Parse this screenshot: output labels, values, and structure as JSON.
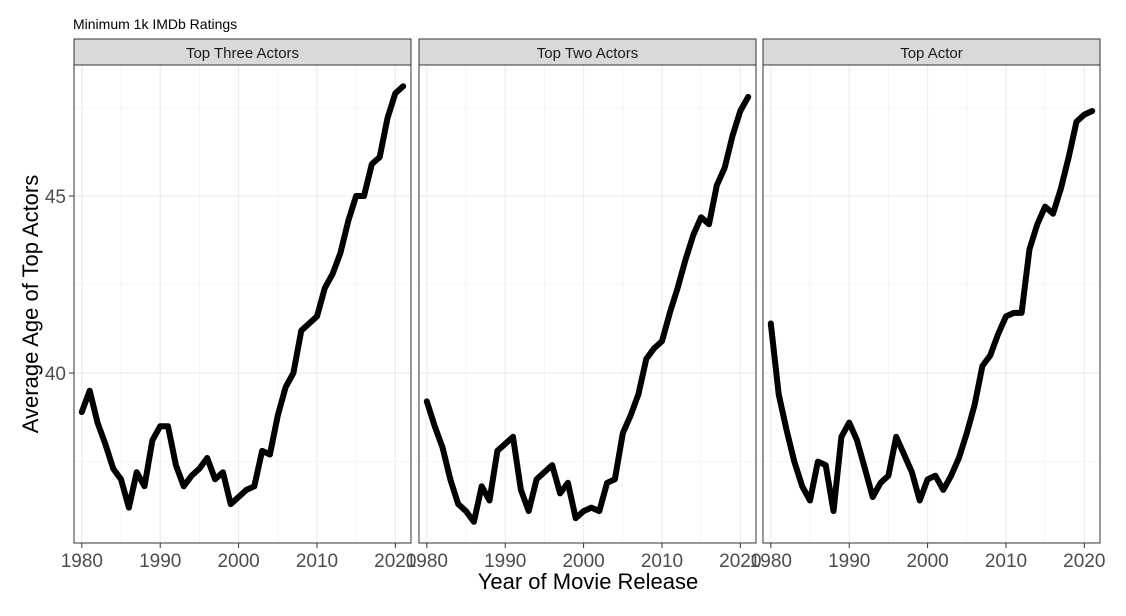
{
  "chart_data": {
    "type": "line",
    "title": "Minimum 1k IMDb Ratings",
    "xlabel": "Year of Movie Release",
    "ylabel": "Average Age of Top Actors",
    "xlim": [
      1979,
      2022
    ],
    "ylim": [
      35.2,
      48.7
    ],
    "x_ticks": [
      1980,
      1990,
      2000,
      2010,
      2020
    ],
    "y_ticks": [
      40,
      45
    ],
    "grid": true,
    "x": [
      1980,
      1981,
      1982,
      1983,
      1984,
      1985,
      1986,
      1987,
      1988,
      1989,
      1990,
      1991,
      1992,
      1993,
      1994,
      1995,
      1996,
      1997,
      1998,
      1999,
      2000,
      2001,
      2002,
      2003,
      2004,
      2005,
      2006,
      2007,
      2008,
      2009,
      2010,
      2011,
      2012,
      2013,
      2014,
      2015,
      2016,
      2017,
      2018,
      2019,
      2020,
      2021
    ],
    "panels": [
      {
        "label": "Top Three Actors",
        "values": [
          38.9,
          39.5,
          38.6,
          38.0,
          37.3,
          37.0,
          36.2,
          37.2,
          36.8,
          38.1,
          38.5,
          38.5,
          37.4,
          36.8,
          37.1,
          37.3,
          37.6,
          37.0,
          37.2,
          36.3,
          36.5,
          36.7,
          36.8,
          37.8,
          37.7,
          38.8,
          39.6,
          40.0,
          41.2,
          41.4,
          41.6,
          42.4,
          42.8,
          43.4,
          44.3,
          45.0,
          45.0,
          45.9,
          46.1,
          47.2,
          47.9,
          48.1
        ]
      },
      {
        "label": "Top Two Actors",
        "values": [
          39.2,
          38.5,
          37.9,
          37.0,
          36.3,
          36.1,
          35.8,
          36.8,
          36.4,
          37.8,
          38.0,
          38.2,
          36.7,
          36.1,
          37.0,
          37.2,
          37.4,
          36.6,
          36.9,
          35.9,
          36.1,
          36.2,
          36.1,
          36.9,
          37.0,
          38.3,
          38.8,
          39.4,
          40.4,
          40.7,
          40.9,
          41.7,
          42.4,
          43.2,
          43.9,
          44.4,
          44.2,
          45.3,
          45.8,
          46.7,
          47.4,
          47.8
        ]
      },
      {
        "label": "Top Actor",
        "values": [
          41.4,
          39.4,
          38.4,
          37.5,
          36.8,
          36.4,
          37.5,
          37.4,
          36.1,
          38.2,
          38.6,
          38.1,
          37.3,
          36.5,
          36.9,
          37.1,
          38.2,
          37.7,
          37.2,
          36.4,
          37.0,
          37.1,
          36.7,
          37.1,
          37.6,
          38.3,
          39.1,
          40.2,
          40.5,
          41.1,
          41.6,
          41.7,
          41.7,
          43.5,
          44.2,
          44.7,
          44.5,
          45.2,
          46.1,
          47.1,
          47.3,
          47.4
        ]
      }
    ]
  }
}
